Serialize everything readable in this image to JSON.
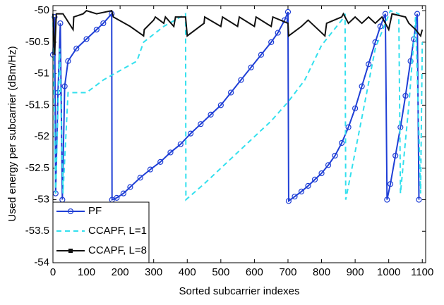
{
  "chart_data": {
    "type": "line",
    "xlabel": "Sorted subcarrier indexes",
    "ylabel": "Used energy per subcarrier (dBm/Hz)",
    "xlim": [
      0,
      1110
    ],
    "ylim": [
      -54,
      -49.92
    ],
    "xticks": [
      0,
      100,
      200,
      300,
      400,
      500,
      600,
      700,
      800,
      900,
      1000,
      1100
    ],
    "yticks": [
      -54,
      -53.5,
      -53,
      -52.5,
      -52,
      -51.5,
      -51,
      -50.5,
      -50
    ],
    "legend": "lower left",
    "series": [
      {
        "name": "PF",
        "color": "#1f3fd6",
        "style": "solid",
        "marker": "circle",
        "x": [
          0,
          5,
          8,
          15,
          22,
          28,
          35,
          45,
          70,
          100,
          130,
          150,
          175,
          176,
          190,
          210,
          230,
          260,
          290,
          320,
          350,
          380,
          410,
          440,
          470,
          500,
          530,
          560,
          590,
          620,
          650,
          670,
          690,
          700,
          702,
          720,
          740,
          760,
          780,
          800,
          820,
          840,
          860,
          880,
          900,
          920,
          940,
          960,
          975,
          990,
          995,
          1005,
          1020,
          1035,
          1050,
          1065,
          1075,
          1085,
          1090
        ],
        "values": [
          -50.7,
          -50.1,
          -52.9,
          -51.3,
          -50.2,
          -53,
          -51.2,
          -50.8,
          -50.6,
          -50.45,
          -50.3,
          -50.2,
          -50.05,
          -53,
          -52.97,
          -52.9,
          -52.8,
          -52.65,
          -52.52,
          -52.4,
          -52.25,
          -52.12,
          -51.95,
          -51.8,
          -51.65,
          -51.5,
          -51.3,
          -51.1,
          -50.9,
          -50.7,
          -50.5,
          -50.35,
          -50.15,
          -50.02,
          -53.02,
          -52.95,
          -52.87,
          -52.78,
          -52.68,
          -52.58,
          -52.45,
          -52.3,
          -52.1,
          -51.85,
          -51.55,
          -51.2,
          -50.85,
          -50.5,
          -50.25,
          -50.05,
          -53,
          -52.75,
          -52.3,
          -51.85,
          -51.35,
          -50.8,
          -50.45,
          -50.05,
          -53
        ]
      },
      {
        "name": "CCAPF, L=1",
        "color": "#33e0ee",
        "style": "dashed",
        "x": [
          0,
          8,
          20,
          30,
          45,
          100,
          150,
          200,
          250,
          270,
          330,
          380,
          395,
          396,
          450,
          500,
          550,
          600,
          650,
          700,
          750,
          800,
          860,
          870,
          872,
          920,
          960,
          1005,
          1030,
          1035,
          1060,
          1080,
          1095,
          1100
        ],
        "values": [
          -50.05,
          -52.9,
          -50.6,
          -52.9,
          -51.3,
          -51.3,
          -51.1,
          -50.95,
          -50.8,
          -50.5,
          -50.25,
          -50.1,
          -50.05,
          -53,
          -52.75,
          -52.5,
          -52.25,
          -52,
          -51.75,
          -51.45,
          -51.1,
          -50.55,
          -50.15,
          -50.05,
          -53,
          -51.7,
          -50.6,
          -50.0,
          -50.05,
          -52.9,
          -51.5,
          -50.1,
          -52.9,
          -50.5
        ]
      },
      {
        "name": "CCAPF, L=8",
        "color": "#111111",
        "style": "solid",
        "marker": "square",
        "x": [
          0,
          5,
          10,
          30,
          60,
          62,
          90,
          100,
          130,
          175,
          180,
          230,
          270,
          272,
          300,
          305,
          330,
          335,
          360,
          365,
          395,
          400,
          450,
          452,
          500,
          505,
          550,
          555,
          600,
          605,
          650,
          655,
          700,
          702,
          740,
          760,
          810,
          815,
          860,
          865,
          880,
          900,
          920,
          940,
          960,
          980,
          1000,
          1010,
          1050,
          1060,
          1080,
          1095,
          1100
        ],
        "values": [
          -50.05,
          -50.7,
          -50.05,
          -50.05,
          -50.3,
          -50.1,
          -50.05,
          -50.0,
          -50.05,
          -50.0,
          -50.1,
          -50.25,
          -50.4,
          -50.3,
          -50.15,
          -50.1,
          -50.2,
          -50.1,
          -50.25,
          -50.1,
          -50.1,
          -50.4,
          -50.2,
          -50.1,
          -50.25,
          -50.1,
          -50.25,
          -50.1,
          -50.25,
          -50.1,
          -50.25,
          -50.1,
          -50.2,
          -50.4,
          -50.25,
          -50.15,
          -50.4,
          -50.2,
          -50.1,
          -50.05,
          -50.2,
          -50.1,
          -50.2,
          -50.1,
          -50.2,
          -50.1,
          -50.3,
          -50.05,
          -50.1,
          -50.2,
          -50.3,
          -50.4,
          -50.3
        ]
      }
    ]
  }
}
